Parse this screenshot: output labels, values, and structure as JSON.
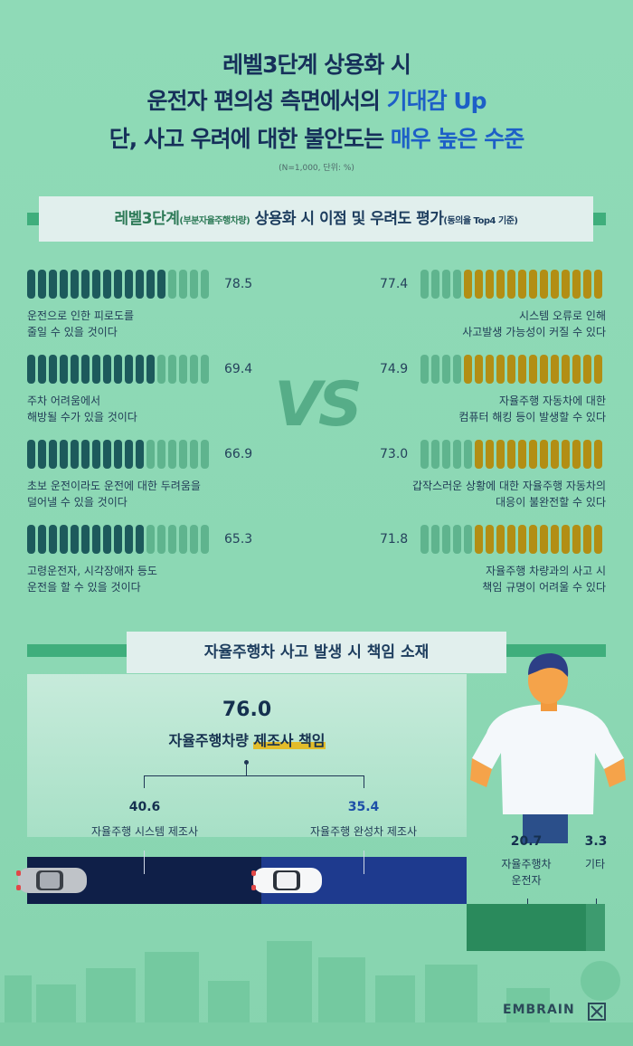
{
  "title": {
    "line1": "레벨3단계 상용화 시",
    "line2_a": "운전자 편의성 측면에서의 ",
    "line2_b": "기대감 Up",
    "line3_a": "단, 사고 우려에 대한 불안도는 ",
    "line3_b": "매우 높은 수준",
    "unit": "(N=1,000, 단위: %)"
  },
  "section1": {
    "a": "레벨3단계",
    "b": "(부분자율주행차량)",
    "c": " 상용화 시 이점 및 우려도 평가",
    "d": "(동의율 Top4 기준)"
  },
  "vs": "VS",
  "colors": {
    "benefit_dark": "#1d5a5c",
    "benefit_light": "#5fb48e",
    "concern_dark": "#b28e14",
    "concern_light": "#5fb48e",
    "highlight": "#1d5fc7",
    "manufacturer_system": "#0f1f48",
    "manufacturer_vehicle": "#1e3a8e",
    "driver": "#2a8a5c",
    "other": "#3d9b6f"
  },
  "chart_data": [
    {
      "type": "bar",
      "name": "이점",
      "categories": [
        "운전으로 인한 피로도를 줄일 수 있을 것이다",
        "주차 어려움에서 해방될 수가 있을 것이다",
        "초보 운전이라도 운전에 대한 두려움을 덜어낼 수 있을 것이다",
        "고령운전자, 시각장애자 등도 운전을 할 수 있을 것이다"
      ],
      "values": [
        78.5,
        69.4,
        66.9,
        65.3
      ],
      "value_labels": [
        "78.5",
        "69.4",
        "66.9",
        "65.3"
      ],
      "labels": [
        [
          "운전으로 인한 피로도를",
          "줄일 수 있을 것이다"
        ],
        [
          "주차 어려움에서",
          "해방될 수가 있을 것이다"
        ],
        [
          "초보 운전이라도 운전에 대한 두려움을",
          "덜어낼 수 있을 것이다"
        ],
        [
          "고령운전자, 시각장애자 등도",
          "운전을 할 수 있을 것이다"
        ]
      ],
      "ylim": [
        0,
        100
      ]
    },
    {
      "type": "bar",
      "name": "우려",
      "categories": [
        "시스템 오류로 인해 사고발생 가능성이 커질 수 있다",
        "자율주행 자동차에 대한 컴퓨터 해킹 등이 발생할 수 있다",
        "갑작스러운 상황에 대한 자율주행 자동차의 대응이 불완전할 수 있다",
        "자율주행 차량과의 사고 시 책임 규명이 어려울 수 있다"
      ],
      "values": [
        77.4,
        74.9,
        73.0,
        71.8
      ],
      "value_labels": [
        "77.4",
        "74.9",
        "73.0",
        "71.8"
      ],
      "labels": [
        [
          "시스템 오류로 인해",
          "사고발생 가능성이 커질 수 있다"
        ],
        [
          "자율주행 자동차에 대한",
          "컴퓨터 해킹 등이 발생할 수 있다"
        ],
        [
          "갑작스러운 상황에 대한 자율주행 자동차의",
          "대응이 불완전할 수 있다"
        ],
        [
          "자율주행 차량과의 사고 시",
          "책임 규명이 어려울 수 있다"
        ]
      ],
      "ylim": [
        0,
        100
      ]
    },
    {
      "type": "bar",
      "name": "자율주행차 사고 발생 시 책임 소재",
      "categories": [
        "자율주행 시스템 제조사",
        "자율주행 완성차 제조사",
        "자율주행차 운전자",
        "기타"
      ],
      "values": [
        40.6,
        35.4,
        20.7,
        3.3
      ],
      "total_manufacturer": 76.0
    }
  ],
  "section2": {
    "title": "자율주행차 사고 발생 시 책임 소재",
    "total_value": "76.0",
    "total_label_a": "자율주행차량 ",
    "total_label_b": "제조사 책임",
    "sys_value": "40.6",
    "sys_label": "자율주행 시스템 제조사",
    "veh_value": "35.4",
    "veh_label": "자율주행 완성차 제조사",
    "driver_value": "20.7",
    "driver_label1": "자율주행차",
    "driver_label2": "운전자",
    "other_value": "3.3",
    "other_label": "기타"
  },
  "logo": "EMBRAIN"
}
